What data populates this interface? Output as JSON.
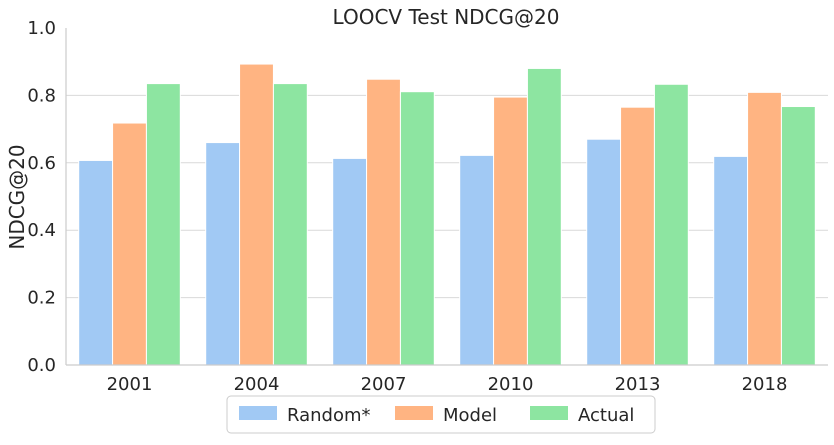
{
  "chart_data": {
    "type": "bar",
    "title": "LOOCV Test NDCG@20",
    "xlabel": "",
    "ylabel": "NDCG@20",
    "ylim": [
      0,
      1.0
    ],
    "yticks": [
      "0.0",
      "0.2",
      "0.4",
      "0.6",
      "0.8",
      "1.0"
    ],
    "categories": [
      "2001",
      "2004",
      "2007",
      "2010",
      "2013",
      "2018"
    ],
    "series": [
      {
        "name": "Random*",
        "color": "#a1c9f4",
        "values": [
          0.607,
          0.66,
          0.613,
          0.622,
          0.67,
          0.619
        ]
      },
      {
        "name": "Model",
        "color": "#ffb482",
        "values": [
          0.718,
          0.893,
          0.848,
          0.795,
          0.765,
          0.809
        ]
      },
      {
        "name": "Actual",
        "color": "#8de5a1",
        "values": [
          0.835,
          0.835,
          0.811,
          0.88,
          0.833,
          0.767
        ]
      }
    ],
    "grid": "horizontal",
    "legend_position": "bottom-center"
  }
}
